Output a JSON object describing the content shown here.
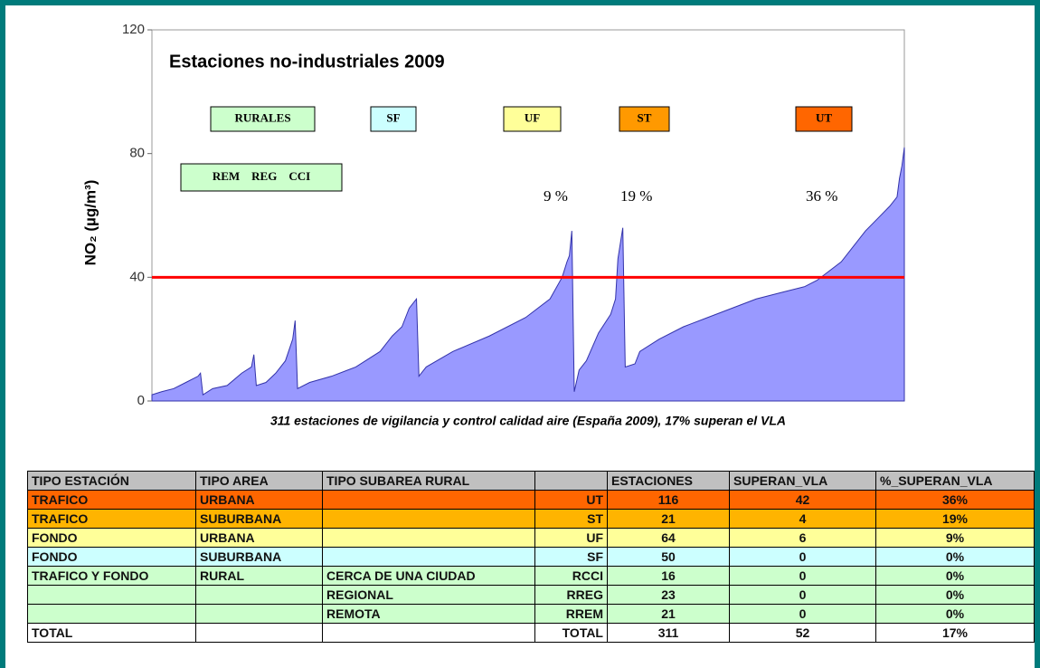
{
  "chart_data": {
    "type": "area",
    "title": "Estaciones no-industriales 2009",
    "ylabel": "NO₂ (µg/m³)",
    "caption": "311 estaciones de vigilancia y control calidad aire (España 2009), 17% superan el VLA",
    "color": "#9999ff",
    "xlim": [
      1,
      311
    ],
    "ylim": [
      0,
      120
    ],
    "yticks": [
      0,
      40,
      80,
      120
    ],
    "reference_line": {
      "value": 40,
      "color": "#ff0000"
    },
    "annotations": [
      "9 %",
      "19 %",
      "36 %"
    ],
    "legend_boxes": [
      {
        "label": "RURALES",
        "color": "#ccffcc"
      },
      {
        "label": "SF",
        "color": "#ccffff"
      },
      {
        "label": "UF",
        "color": "#ffff99"
      },
      {
        "label": "ST",
        "color": "#ff9900"
      },
      {
        "label": "UT",
        "color": "#ff6600"
      },
      {
        "label": "REM    REG    CCI",
        "color": "#ccffcc"
      }
    ],
    "x": [
      1,
      5,
      10,
      15,
      20,
      21,
      22,
      26,
      32,
      38,
      42,
      43,
      44,
      48,
      52,
      56,
      59,
      60,
      61,
      66,
      75,
      85,
      95,
      100,
      104,
      107,
      110,
      111,
      114,
      125,
      140,
      155,
      165,
      170,
      172,
      173,
      174,
      175,
      177,
      180,
      185,
      190,
      192,
      193,
      195,
      196,
      200,
      202,
      210,
      220,
      230,
      240,
      250,
      260,
      270,
      275,
      280,
      285,
      290,
      295,
      300,
      305,
      308,
      309,
      310,
      311
    ],
    "values": [
      2,
      3,
      4,
      6,
      8,
      9,
      2,
      4,
      5,
      9,
      11,
      15,
      5,
      6,
      9,
      13,
      20,
      26,
      4,
      6,
      8,
      11,
      16,
      21,
      24,
      30,
      33,
      8,
      11,
      16,
      21,
      27,
      33,
      40,
      45,
      47,
      55,
      3,
      10,
      13,
      22,
      28,
      33,
      46,
      56,
      11,
      12,
      16,
      20,
      24,
      27,
      30,
      33,
      35,
      37,
      39,
      42,
      45,
      50,
      55,
      59,
      63,
      66,
      72,
      76,
      82
    ]
  },
  "table": {
    "header": [
      "TIPO ESTACIÓN",
      "TIPO AREA",
      "TIPO SUBAREA RURAL",
      null,
      "ESTACIONES",
      "SUPERAN_VLA",
      "%_SUPERAN_VLA"
    ],
    "row_colors": [
      "#ff6600",
      "#ffb400",
      "#ffff99",
      "#ccffff",
      "#ccffcc",
      "#ccffcc",
      "#ccffcc",
      "#ffffff"
    ],
    "rows": [
      [
        "TRAFICO",
        "URBANA",
        null,
        "UT",
        116,
        42,
        "36%"
      ],
      [
        "TRAFICO",
        "SUBURBANA",
        null,
        "ST",
        21,
        4,
        "19%"
      ],
      [
        "FONDO",
        "URBANA",
        null,
        "UF",
        64,
        6,
        "9%"
      ],
      [
        "FONDO",
        "SUBURBANA",
        null,
        "SF",
        50,
        0,
        "0%"
      ],
      [
        "TRAFICO Y FONDO",
        "RURAL",
        "CERCA DE UNA CIUDAD",
        "RCCI",
        16,
        0,
        "0%"
      ],
      [
        null,
        null,
        "REGIONAL",
        "RREG",
        23,
        0,
        "0%"
      ],
      [
        null,
        null,
        "REMOTA",
        "RREM",
        21,
        0,
        "0%"
      ],
      [
        "TOTAL",
        null,
        null,
        "TOTAL",
        311,
        52,
        "17%"
      ]
    ]
  }
}
